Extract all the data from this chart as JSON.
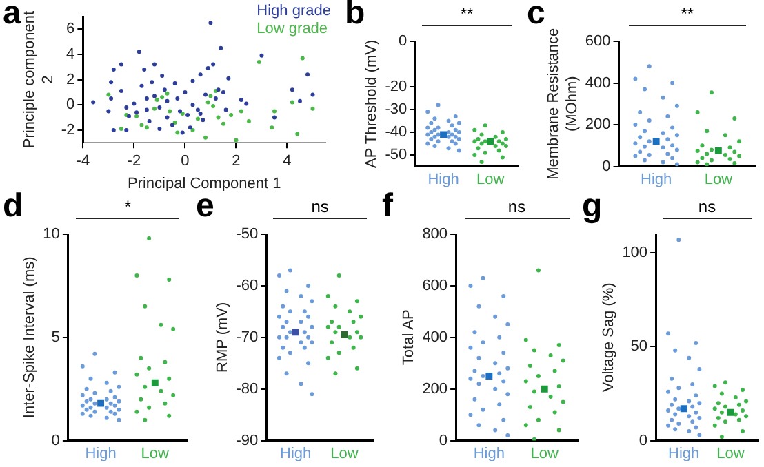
{
  "chart_data": [
    {
      "type": "scatter",
      "title": "a",
      "xlabel": "Principal Component 1",
      "ylabel": "Principle component 2",
      "xlim": [
        -4,
        5.5
      ],
      "xticks": [
        -4,
        -2,
        0,
        2,
        4
      ],
      "ylim": [
        -3,
        7
      ],
      "yticks": [
        -2,
        0,
        2,
        4,
        6
      ],
      "legend": "top right",
      "marker": "circle",
      "series": [
        {
          "name": "High grade",
          "color": "#2c3e99",
          "x": [
            -3.6,
            -3.0,
            -2.9,
            -2.8,
            -2.8,
            -2.9,
            -2.5,
            -2.5,
            -2.3,
            -2.2,
            -2.0,
            -1.8,
            -1.7,
            -1.6,
            -1.5,
            -1.5,
            -1.4,
            -1.3,
            -1.2,
            -1.2,
            -1.0,
            -1.0,
            -0.9,
            -0.8,
            -0.7,
            -0.7,
            -0.5,
            -0.4,
            -0.3,
            -0.2,
            -0.1,
            0.0,
            0.1,
            0.2,
            0.3,
            0.3,
            0.5,
            0.6,
            0.7,
            0.8,
            0.9,
            1.0,
            1.1,
            1.2,
            1.3,
            1.4,
            1.5,
            1.6,
            1.7,
            2.2,
            2.4,
            3.0,
            3.5,
            4.2,
            4.5,
            4.8,
            5.0,
            -2.3,
            -1.9,
            0.6
          ],
          "values": [
            0.2,
            -0.5,
            1.8,
            2.8,
            -2.0,
            0.5,
            3.2,
            1.1,
            -0.2,
            -0.9,
            0.1,
            4.2,
            1.5,
            2.8,
            0.5,
            -0.4,
            -1.3,
            1.8,
            3.2,
            0.7,
            -0.2,
            -1.9,
            2.3,
            1.2,
            0.3,
            -1.0,
            -1.6,
            1.7,
            0.5,
            -0.5,
            -2.2,
            1.0,
            -0.8,
            -1.8,
            1.9,
            0.0,
            -0.4,
            2.4,
            -1.2,
            0.8,
            2.9,
            6.5,
            3.2,
            0.5,
            1.2,
            4.5,
            1.0,
            -0.4,
            2.1,
            0.4,
            0.1,
            3.9,
            -1.0,
            1.2,
            0.3,
            2.4,
            0.8,
            -2.0,
            -0.6,
            -0.7
          ]
        },
        {
          "name": "Low grade",
          "color": "#4cb84a",
          "x": [
            -3.0,
            -2.5,
            -2.3,
            -1.7,
            -1.5,
            -1.2,
            -1.1,
            -0.9,
            -0.7,
            -0.6,
            -0.4,
            -0.3,
            -0.1,
            0.3,
            0.8,
            0.9,
            1.0,
            1.1,
            1.2,
            1.5,
            1.8,
            2.0,
            2.2,
            2.5,
            2.9,
            3.4,
            3.5,
            4.2,
            4.4,
            4.6,
            5.0,
            0.5,
            1.3,
            -1.9
          ],
          "values": [
            0.8,
            -1.9,
            -0.8,
            -1.6,
            -1.8,
            -0.3,
            0.4,
            0.6,
            0.9,
            -0.5,
            -1.4,
            -2.2,
            -0.7,
            -2.0,
            -2.6,
            0.2,
            0.7,
            -0.1,
            1.1,
            -1.5,
            -0.8,
            -2.8,
            -0.5,
            -1.3,
            3.4,
            -1.8,
            -0.5,
            0.2,
            -2.3,
            3.7,
            -0.3,
            -1.1,
            -1.0,
            -0.9
          ]
        }
      ]
    },
    {
      "type": "scatter",
      "title": "b",
      "ylabel": "AP Threshold (mV)",
      "categories": [
        "High",
        "Low"
      ],
      "ylim": [
        -55,
        0
      ],
      "yticks": [
        0,
        -20,
        -30,
        -40,
        -50
      ],
      "annotations": [
        "**"
      ],
      "series": [
        {
          "color": "#6b9bd8",
          "marker": "circle",
          "x": [
            "High",
            "High",
            "High",
            "High",
            "High",
            "High",
            "High",
            "High",
            "High",
            "High",
            "High",
            "High",
            "High",
            "High",
            "High",
            "High",
            "High",
            "High",
            "High",
            "High",
            "High",
            "High",
            "High",
            "High",
            "High",
            "High",
            "High",
            "High",
            "High",
            "High"
          ],
          "values": [
            -28,
            -31,
            -33,
            -34,
            -35,
            -36,
            -36,
            -37,
            -38,
            -38,
            -39,
            -39,
            -40,
            -40,
            -40,
            -41,
            -41,
            -41,
            -42,
            -42,
            -42,
            -43,
            -43,
            -44,
            -44,
            -45,
            -45,
            -46,
            -47,
            -48
          ]
        },
        {
          "color": "#3db54a",
          "marker": "circle",
          "x": [
            "Low",
            "Low",
            "Low",
            "Low",
            "Low",
            "Low",
            "Low",
            "Low",
            "Low",
            "Low",
            "Low",
            "Low",
            "Low",
            "Low",
            "Low",
            "Low",
            "Low",
            "Low",
            "Low",
            "Low"
          ],
          "values": [
            -37,
            -39,
            -40,
            -41,
            -42,
            -43,
            -43,
            -44,
            -44,
            -44,
            -45,
            -45,
            -46,
            -46,
            -47,
            -48,
            -49,
            -50,
            -51,
            -53
          ]
        },
        {
          "colors": [
            "#1a6fc0",
            "#1a9a3a"
          ],
          "marker": "square",
          "x": [
            "High",
            "Low"
          ],
          "values": [
            -41,
            -44
          ]
        }
      ]
    },
    {
      "type": "scatter",
      "title": "c",
      "ylabel": "Membrane Resistance (MOhm)",
      "categories": [
        "High",
        "Low"
      ],
      "ylim": [
        0,
        600
      ],
      "yticks": [
        0,
        200,
        400,
        600
      ],
      "annotations": [
        "**"
      ],
      "series": [
        {
          "color": "#6b9bd8",
          "marker": "circle",
          "x": [
            "High",
            "High",
            "High",
            "High",
            "High",
            "High",
            "High",
            "High",
            "High",
            "High",
            "High",
            "High",
            "High",
            "High",
            "High",
            "High",
            "High",
            "High",
            "High",
            "High",
            "High",
            "High",
            "High",
            "High",
            "High",
            "High",
            "High",
            "High",
            "High",
            "High"
          ],
          "values": [
            480,
            420,
            400,
            370,
            330,
            290,
            260,
            240,
            220,
            200,
            185,
            170,
            160,
            150,
            140,
            130,
            120,
            110,
            100,
            95,
            90,
            80,
            70,
            60,
            55,
            50,
            40,
            30,
            20,
            10
          ]
        },
        {
          "color": "#3db54a",
          "marker": "circle",
          "x": [
            "Low",
            "Low",
            "Low",
            "Low",
            "Low",
            "Low",
            "Low",
            "Low",
            "Low",
            "Low",
            "Low",
            "Low",
            "Low",
            "Low",
            "Low",
            "Low",
            "Low",
            "Low",
            "Low",
            "Low"
          ],
          "values": [
            355,
            260,
            230,
            170,
            150,
            120,
            100,
            90,
            80,
            75,
            70,
            60,
            55,
            50,
            40,
            35,
            30,
            20,
            15,
            10
          ]
        },
        {
          "colors": [
            "#1a6fc0",
            "#1a9a3a"
          ],
          "marker": "square",
          "x": [
            "High",
            "Low"
          ],
          "values": [
            120,
            75
          ]
        }
      ]
    },
    {
      "type": "scatter",
      "title": "d",
      "ylabel": "Inter-Spike Interval (ms)",
      "categories": [
        "High",
        "Low"
      ],
      "ylim": [
        0,
        10
      ],
      "yticks": [
        0,
        5,
        10
      ],
      "annotations": [
        "*"
      ],
      "series": [
        {
          "color": "#6b9bd8",
          "marker": "circle",
          "x": [
            "High",
            "High",
            "High",
            "High",
            "High",
            "High",
            "High",
            "High",
            "High",
            "High",
            "High",
            "High",
            "High",
            "High",
            "High",
            "High",
            "High",
            "High",
            "High",
            "High",
            "High",
            "High",
            "High",
            "High",
            "High",
            "High",
            "High",
            "High",
            "High",
            "High"
          ],
          "values": [
            4.2,
            3.6,
            3.3,
            3.0,
            2.8,
            2.6,
            2.5,
            2.4,
            2.3,
            2.2,
            2.1,
            2.0,
            2.0,
            1.9,
            1.9,
            1.8,
            1.8,
            1.7,
            1.7,
            1.6,
            1.6,
            1.5,
            1.5,
            1.4,
            1.4,
            1.3,
            1.3,
            1.2,
            1.1,
            1.0
          ]
        },
        {
          "color": "#3db54a",
          "marker": "circle",
          "x": [
            "Low",
            "Low",
            "Low",
            "Low",
            "Low",
            "Low",
            "Low",
            "Low",
            "Low",
            "Low",
            "Low",
            "Low",
            "Low",
            "Low",
            "Low",
            "Low",
            "Low",
            "Low",
            "Low",
            "Low"
          ],
          "values": [
            9.8,
            8.0,
            7.8,
            6.5,
            5.6,
            5.4,
            4.0,
            3.8,
            3.5,
            3.2,
            3.0,
            2.6,
            2.4,
            2.2,
            2.0,
            1.8,
            1.6,
            1.4,
            1.2,
            1.0
          ]
        },
        {
          "colors": [
            "#1a6fc0",
            "#1a9a3a"
          ],
          "marker": "square",
          "x": [
            "High",
            "Low"
          ],
          "values": [
            1.8,
            2.8
          ]
        }
      ]
    },
    {
      "type": "scatter",
      "title": "e",
      "ylabel": "RMP (mV)",
      "categories": [
        "High",
        "Low"
      ],
      "ylim": [
        -90,
        -50
      ],
      "yticks": [
        -90,
        -80,
        -70,
        -60,
        -50
      ],
      "annotations": [
        "ns"
      ],
      "series": [
        {
          "color": "#6b9bd8",
          "marker": "circle",
          "x": [
            "High",
            "High",
            "High",
            "High",
            "High",
            "High",
            "High",
            "High",
            "High",
            "High",
            "High",
            "High",
            "High",
            "High",
            "High",
            "High",
            "High",
            "High",
            "High",
            "High",
            "High",
            "High",
            "High",
            "High",
            "High",
            "High",
            "High",
            "High",
            "High",
            "High"
          ],
          "values": [
            -57,
            -58,
            -60,
            -61,
            -62,
            -63,
            -64,
            -65,
            -65,
            -66,
            -66,
            -67,
            -67,
            -68,
            -68,
            -69,
            -69,
            -70,
            -70,
            -70,
            -71,
            -71,
            -72,
            -72,
            -73,
            -74,
            -75,
            -77,
            -79,
            -81
          ]
        },
        {
          "color": "#3db54a",
          "marker": "circle",
          "x": [
            "Low",
            "Low",
            "Low",
            "Low",
            "Low",
            "Low",
            "Low",
            "Low",
            "Low",
            "Low",
            "Low",
            "Low",
            "Low",
            "Low",
            "Low",
            "Low",
            "Low",
            "Low",
            "Low",
            "Low"
          ],
          "values": [
            -58,
            -62,
            -63,
            -64,
            -65,
            -66,
            -67,
            -67,
            -68,
            -68,
            -69,
            -69,
            -70,
            -70,
            -71,
            -72,
            -73,
            -74,
            -76,
            -77
          ]
        },
        {
          "colors": [
            "#3b4fa6",
            "#2d6a30"
          ],
          "marker": "square",
          "x": [
            "High",
            "Low"
          ],
          "values": [
            -69,
            -69.5
          ]
        }
      ]
    },
    {
      "type": "scatter",
      "title": "f",
      "ylabel": "Total AP",
      "categories": [
        "High",
        "Low"
      ],
      "ylim": [
        0,
        800
      ],
      "yticks": [
        0,
        200,
        400,
        600,
        800
      ],
      "annotations": [
        "ns"
      ],
      "series": [
        {
          "color": "#6b9bd8",
          "marker": "circle",
          "x": [
            "High",
            "High",
            "High",
            "High",
            "High",
            "High",
            "High",
            "High",
            "High",
            "High",
            "High",
            "High",
            "High",
            "High",
            "High",
            "High",
            "High",
            "High",
            "High",
            "High",
            "High",
            "High",
            "High",
            "High",
            "High",
            "High",
            "High",
            "High",
            "High",
            "High"
          ],
          "values": [
            630,
            600,
            560,
            520,
            480,
            450,
            420,
            400,
            380,
            360,
            340,
            320,
            300,
            280,
            270,
            260,
            250,
            240,
            230,
            220,
            200,
            180,
            160,
            140,
            120,
            100,
            80,
            60,
            40,
            20
          ]
        },
        {
          "color": "#3db54a",
          "marker": "circle",
          "x": [
            "Low",
            "Low",
            "Low",
            "Low",
            "Low",
            "Low",
            "Low",
            "Low",
            "Low",
            "Low",
            "Low",
            "Low",
            "Low",
            "Low",
            "Low",
            "Low",
            "Low",
            "Low",
            "Low",
            "Low"
          ],
          "values": [
            660,
            390,
            370,
            350,
            330,
            310,
            290,
            270,
            250,
            230,
            210,
            190,
            170,
            150,
            130,
            110,
            80,
            60,
            40,
            5
          ]
        },
        {
          "colors": [
            "#1a6fc0",
            "#1a9a3a"
          ],
          "marker": "square",
          "x": [
            "High",
            "Low"
          ],
          "values": [
            250,
            200
          ]
        }
      ]
    },
    {
      "type": "scatter",
      "title": "g",
      "ylabel": "Voltage Sag (%)",
      "categories": [
        "High",
        "Low"
      ],
      "ylim": [
        0,
        110
      ],
      "yticks": [
        0,
        50,
        100
      ],
      "annotations": [
        "ns"
      ],
      "series": [
        {
          "color": "#6b9bd8",
          "marker": "circle",
          "x": [
            "High",
            "High",
            "High",
            "High",
            "High",
            "High",
            "High",
            "High",
            "High",
            "High",
            "High",
            "High",
            "High",
            "High",
            "High",
            "High",
            "High",
            "High",
            "High",
            "High",
            "High",
            "High",
            "High",
            "High",
            "High",
            "High",
            "High",
            "High",
            "High",
            "High"
          ],
          "values": [
            107,
            57,
            52,
            48,
            44,
            38,
            33,
            30,
            28,
            26,
            24,
            22,
            21,
            20,
            19,
            18,
            17,
            16,
            15,
            14,
            13,
            12,
            11,
            10,
            9,
            8,
            7,
            6,
            5,
            3
          ]
        },
        {
          "color": "#3db54a",
          "marker": "circle",
          "x": [
            "Low",
            "Low",
            "Low",
            "Low",
            "Low",
            "Low",
            "Low",
            "Low",
            "Low",
            "Low",
            "Low",
            "Low",
            "Low",
            "Low",
            "Low",
            "Low",
            "Low",
            "Low",
            "Low",
            "Low"
          ],
          "values": [
            31,
            29,
            27,
            25,
            23,
            21,
            20,
            19,
            18,
            17,
            16,
            15,
            14,
            13,
            12,
            11,
            10,
            8,
            5,
            2
          ]
        },
        {
          "colors": [
            "#1a6fc0",
            "#1a9a3a"
          ],
          "marker": "square",
          "x": [
            "High",
            "Low"
          ],
          "values": [
            17,
            15
          ]
        }
      ]
    }
  ]
}
